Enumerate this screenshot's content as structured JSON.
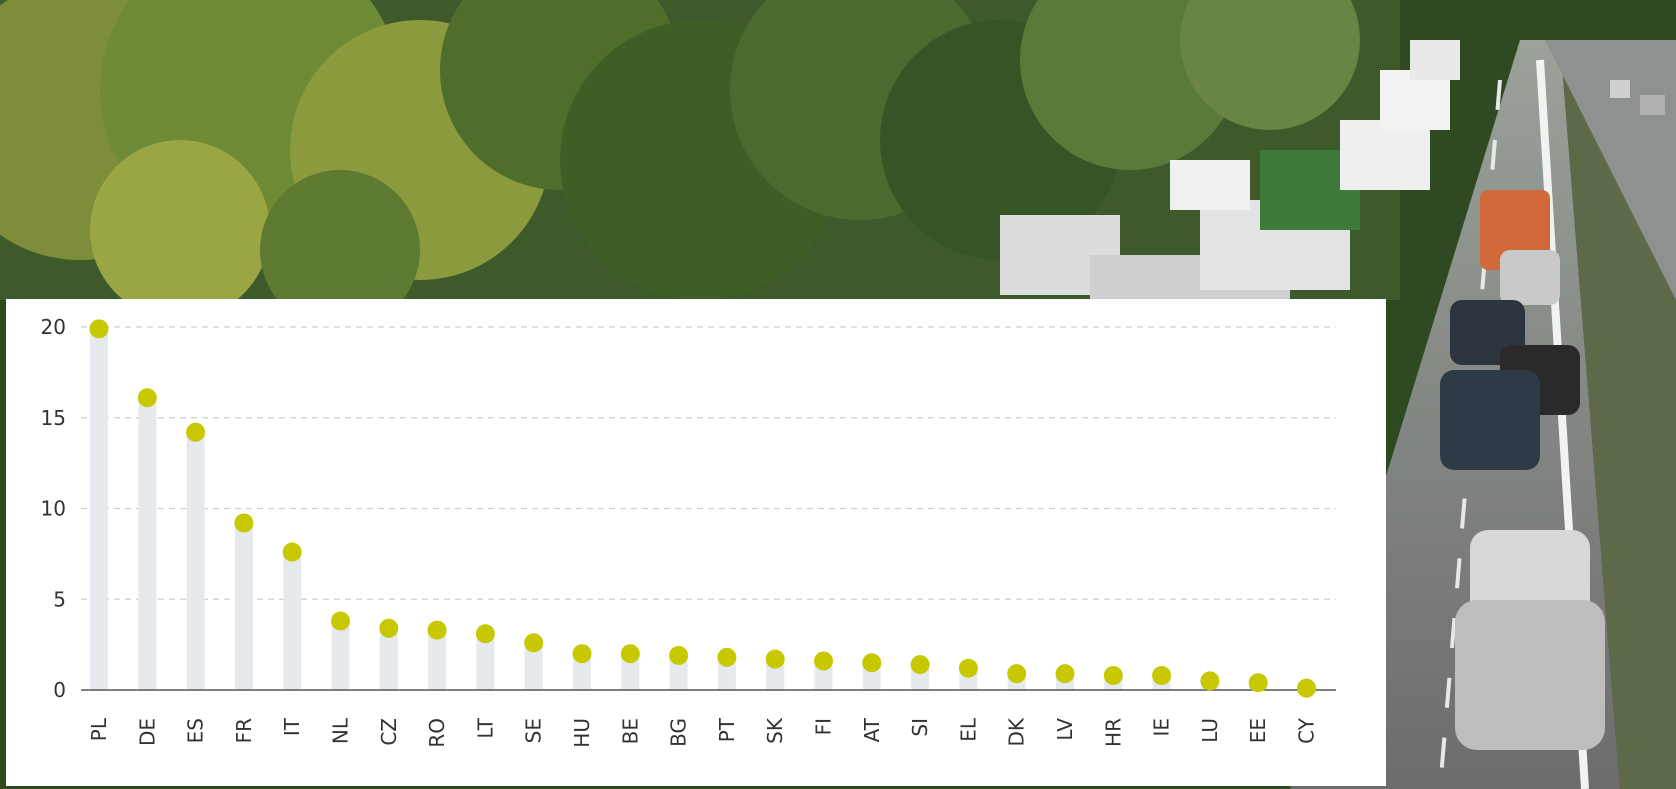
{
  "chart_data": {
    "type": "scatter",
    "categories": [
      "PL",
      "DE",
      "ES",
      "FR",
      "IT",
      "NL",
      "CZ",
      "RO",
      "LT",
      "SE",
      "HU",
      "BE",
      "BG",
      "PT",
      "SK",
      "FI",
      "AT",
      "SI",
      "EL",
      "DK",
      "LV",
      "HR",
      "IE",
      "LU",
      "EE",
      "CY"
    ],
    "values": [
      19.9,
      16.1,
      14.2,
      9.2,
      7.6,
      3.8,
      3.4,
      3.3,
      3.1,
      2.6,
      2.0,
      2.0,
      1.9,
      1.8,
      1.7,
      1.6,
      1.5,
      1.4,
      1.2,
      0.9,
      0.9,
      0.8,
      0.8,
      0.5,
      0.4,
      0.1
    ],
    "ylim": [
      0,
      20
    ],
    "yticks": [
      "0",
      "5",
      "10",
      "15",
      "20"
    ],
    "grid": true,
    "style": "lollipop with grey stems and dot markers",
    "colors": {
      "marker": "#c8c800",
      "stem": "#e6e9ee",
      "grid": "#cfcfcf",
      "text": "#333333"
    }
  }
}
